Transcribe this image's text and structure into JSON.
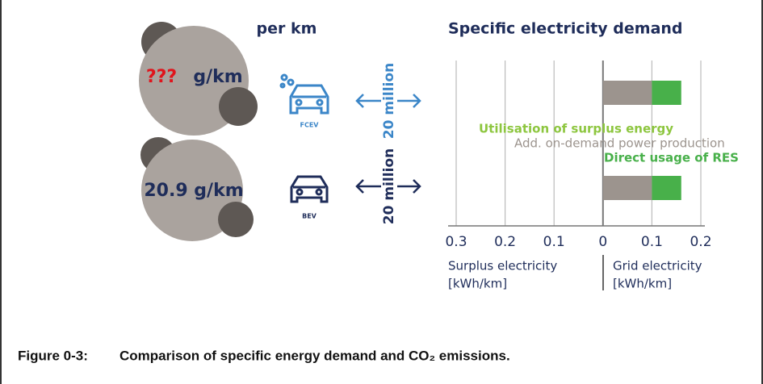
{
  "left_panel": {
    "heading": "per km",
    "emissions": [
      {
        "value": "???",
        "unit": "g/km"
      },
      {
        "value": "20.9 g/km"
      }
    ],
    "fleet": [
      "20 million",
      "20 million"
    ]
  },
  "chart_data": {
    "type": "hbar-stacked",
    "title": "Specific electricity demand",
    "categories": [
      "FCEV",
      "BEV"
    ],
    "series": [
      {
        "name": "Utilisation of surplus energy",
        "color": "#8dc63f",
        "values": [
          0,
          0
        ]
      },
      {
        "name": "Add. on-demand power production",
        "color": "#9c948e",
        "values": [
          0.1,
          0.1
        ]
      },
      {
        "name": "Direct usage of RES",
        "color": "#48b04a",
        "values": [
          0.06,
          0.06
        ]
      }
    ],
    "xlim": [
      -0.3,
      0.2
    ],
    "xticks": [
      {
        "value": -0.3,
        "label": "0.3"
      },
      {
        "value": -0.2,
        "label": "0.2"
      },
      {
        "value": -0.1,
        "label": "0.1"
      },
      0,
      0.1,
      0.2
    ],
    "xlabel_left": [
      "Surplus electricity",
      "[kWh/km]"
    ],
    "xlabel_right": [
      "Grid electricity",
      "[kWh/km]"
    ],
    "grid": true
  },
  "caption": {
    "number": "Figure 0-3:",
    "text": "Comparison of specific energy demand and CO₂ emissions."
  }
}
